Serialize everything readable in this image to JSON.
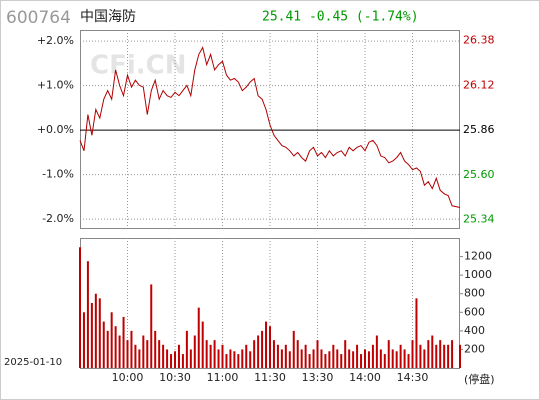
{
  "header": {
    "code": "600764",
    "name": "中国海防",
    "quote": "25.41 -0.45 (-1.74%)"
  },
  "watermark": "CFi.CN",
  "chart_data": [
    {
      "type": "line",
      "date": "2025-01-10",
      "x": [
        0,
        2.5,
        5,
        7.5,
        10,
        12.5,
        15,
        17.5,
        20,
        22.5,
        25,
        27.5,
        30,
        32.5,
        35,
        37.5,
        40,
        42.5,
        45,
        47.5,
        50,
        52.5,
        55,
        57.5,
        60,
        62.5,
        65,
        67.5,
        70,
        72.5,
        75,
        77.5,
        80,
        82.5,
        85,
        87.5,
        90,
        92.5,
        95,
        97.5,
        100,
        102.5,
        105,
        107.5,
        110,
        112.5,
        115,
        117.5,
        120,
        122.5,
        125,
        127.5,
        130,
        132.5,
        135,
        137.5,
        140,
        142.5,
        145,
        147.5,
        150,
        152.5,
        155,
        157.5,
        160,
        162.5,
        165,
        167.5,
        170,
        172.5,
        175,
        177.5,
        180,
        182.5,
        185,
        187.5,
        190,
        192.5,
        195,
        197.5,
        200,
        202.5,
        205,
        207.5,
        210,
        212.5,
        215,
        217.5,
        220,
        222.5,
        225,
        227.5,
        230,
        232.5,
        235,
        240
      ],
      "xlim": [
        0,
        240
      ],
      "xticks": [
        {
          "value": 30,
          "label": "10:00"
        },
        {
          "value": 60,
          "label": "10:30"
        },
        {
          "value": 90,
          "label": "11:00"
        },
        {
          "value": 120,
          "label": "11:30"
        },
        {
          "value": 150,
          "label": "13:30"
        },
        {
          "value": 180,
          "label": "14:00"
        },
        {
          "value": 210,
          "label": "14:30"
        }
      ],
      "ylim": [
        -2.2,
        2.25
      ],
      "yticks": [
        {
          "value": 2,
          "label": "+2.0%"
        },
        {
          "value": 1,
          "label": "+1.0%"
        },
        {
          "value": 0,
          "label": "+0.0%"
        },
        {
          "value": -1,
          "label": "-1.0%"
        },
        {
          "value": -2,
          "label": "-2.0%"
        }
      ],
      "y2lim": [
        25.291,
        26.442
      ],
      "y2ticks": [
        26.38,
        26.12,
        25.86,
        {
          "value": 25.6,
          "label": "25.60"
        },
        25.34
      ],
      "series": [
        {
          "color": "#b00000",
          "axis": "y2",
          "values": [
            25.8,
            25.74,
            25.95,
            25.83,
            25.98,
            25.93,
            26.04,
            26.09,
            26.04,
            26.21,
            26.12,
            26.06,
            26.18,
            26.11,
            26.15,
            26.12,
            26.11,
            25.95,
            26.09,
            26.15,
            26.04,
            26.09,
            26.06,
            26.05,
            26.08,
            26.06,
            26.09,
            26.12,
            26.06,
            26.21,
            26.3,
            26.34,
            26.24,
            26.3,
            26.21,
            26.24,
            26.26,
            26.18,
            26.15,
            26.16,
            26.14,
            26.09,
            26.11,
            26.14,
            26.16,
            26.06,
            26.04,
            25.98,
            25.89,
            25.83,
            25.8,
            25.77,
            25.76,
            25.74,
            25.71,
            25.73,
            25.7,
            25.68,
            25.74,
            25.76,
            25.71,
            25.73,
            25.7,
            25.74,
            25.71,
            25.73,
            25.74,
            25.71,
            25.76,
            25.74,
            25.76,
            25.77,
            25.74,
            25.79,
            25.8,
            25.77,
            25.71,
            25.7,
            25.67,
            25.68,
            25.7,
            25.73,
            25.68,
            25.66,
            25.63,
            25.64,
            25.62,
            25.54,
            25.56,
            25.52,
            25.58,
            25.51,
            25.49,
            25.48,
            25.42,
            25.41
          ]
        }
      ],
      "grid": true
    },
    {
      "type": "bar",
      "note_label": "(停盘)",
      "color": "#c00000",
      "ylim": [
        0,
        1400
      ],
      "yticks": [
        200,
        400,
        600,
        800,
        1000,
        1200
      ],
      "values": [
        1300,
        600,
        1150,
        700,
        800,
        750,
        500,
        400,
        600,
        450,
        350,
        550,
        300,
        400,
        250,
        200,
        350,
        300,
        900,
        400,
        300,
        250,
        200,
        150,
        180,
        250,
        150,
        400,
        200,
        350,
        650,
        500,
        300,
        250,
        300,
        200,
        250,
        150,
        200,
        180,
        150,
        200,
        250,
        180,
        300,
        350,
        400,
        500,
        450,
        300,
        250,
        200,
        250,
        180,
        400,
        300,
        200,
        250,
        150,
        200,
        300,
        200,
        150,
        180,
        250,
        200,
        150,
        300,
        200,
        180,
        250,
        150,
        200,
        180,
        250,
        350,
        200,
        150,
        300,
        200,
        180,
        250,
        200,
        150,
        300,
        750,
        250,
        200,
        300,
        350,
        250,
        300,
        250,
        250,
        300,
        250
      ]
    }
  ]
}
